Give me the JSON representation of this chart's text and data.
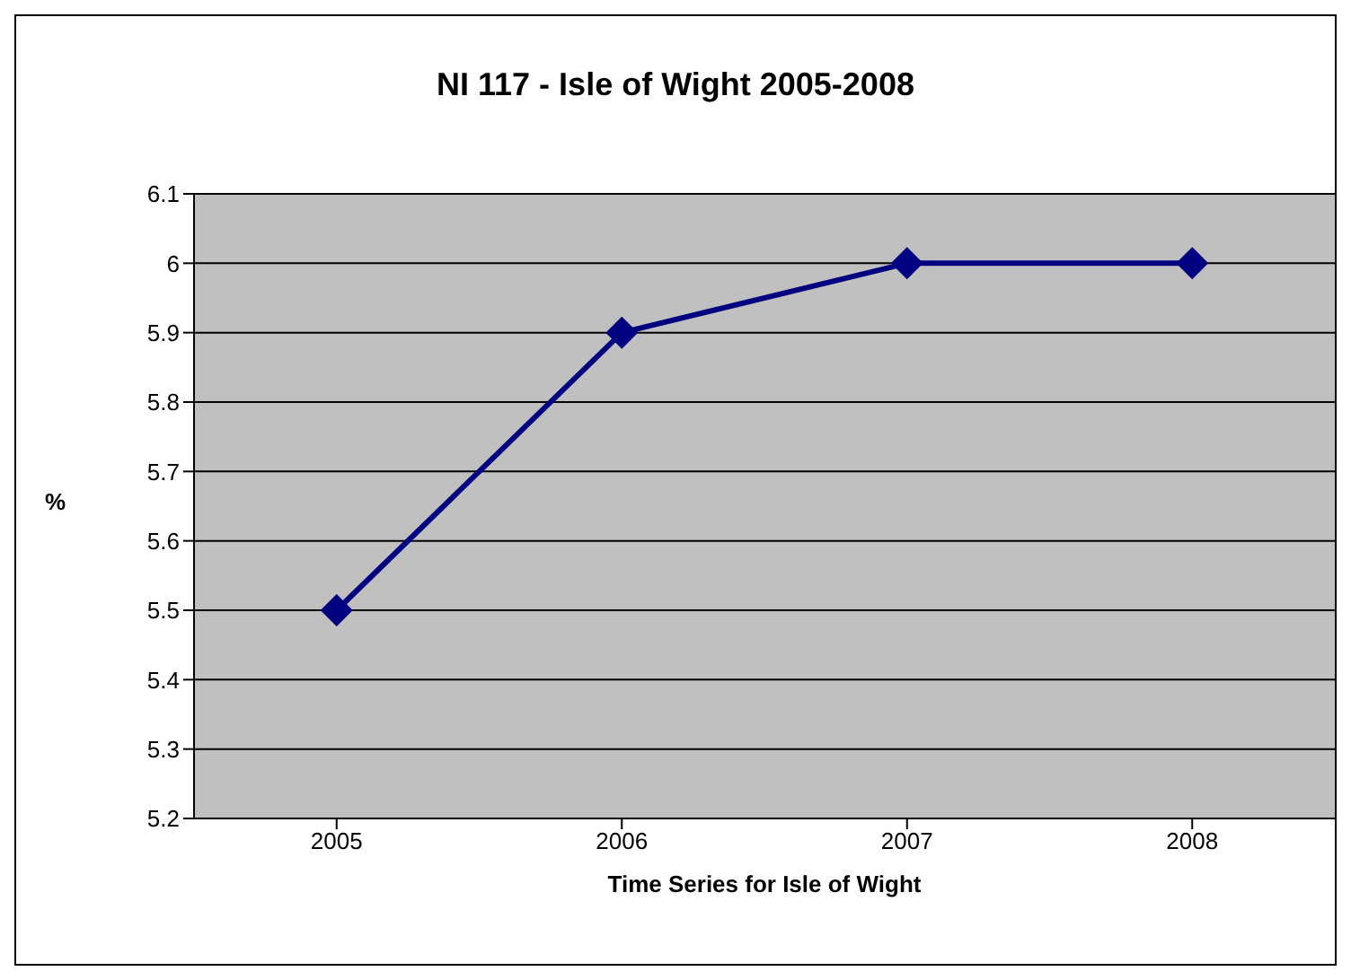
{
  "chart_data": {
    "type": "line",
    "title": "NI 117 - Isle of Wight 2005-2008",
    "xlabel": "Time Series for Isle of Wight",
    "ylabel": "%",
    "categories": [
      "2005",
      "2006",
      "2007",
      "2008"
    ],
    "series": [
      {
        "color": "#000080",
        "values": [
          5.5,
          5.9,
          6,
          6
        ]
      }
    ],
    "ylim": [
      5.2,
      6.1
    ],
    "yticks": [
      5.2,
      5.3,
      5.4,
      5.5,
      5.6,
      5.7,
      5.8,
      5.9,
      6,
      6.1
    ],
    "grid": "y",
    "marker": "diamond",
    "line_style": "solid"
  }
}
